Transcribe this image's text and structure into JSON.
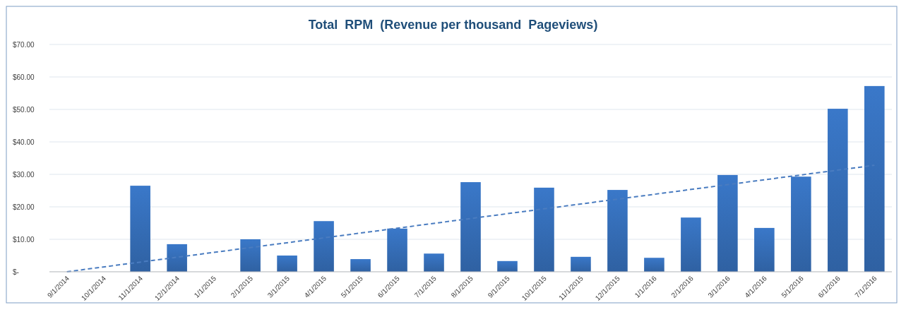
{
  "chart_data": {
    "type": "bar",
    "title": "Total  RPM  (Revenue per thousand  Pageviews)",
    "categories": [
      "9/1/2014",
      "10/1/2014",
      "11/1/2014",
      "12/1/2014",
      "1/1/2015",
      "2/1/2015",
      "3/1/2015",
      "4/1/2015",
      "5/1/2015",
      "6/1/2015",
      "7/1/2015",
      "8/1/2015",
      "9/1/2015",
      "10/1/2015",
      "11/1/2015",
      "12/1/2015",
      "1/1/2016",
      "2/1/2016",
      "3/1/2016",
      "4/1/2016",
      "5/1/2016",
      "6/1/2016",
      "7/1/2016"
    ],
    "series": [
      {
        "color": "#3a78c9",
        "values": [
          0,
          0,
          26.5,
          8.5,
          0,
          10.0,
          5.0,
          15.6,
          3.9,
          13.3,
          5.6,
          27.6,
          3.3,
          25.9,
          4.6,
          25.2,
          4.3,
          16.7,
          29.8,
          13.5,
          29.3,
          50.2,
          57.2
        ]
      },
      {
        "type": "line",
        "color": "#4a7cc0",
        "line_style": "dashed",
        "x": [
          "9/1/2014",
          "7/1/2016"
        ],
        "values": [
          0,
          32.8
        ]
      }
    ],
    "ylim": [
      0,
      70
    ],
    "yticks": [
      {
        "value": 0,
        "label": "$-"
      },
      {
        "value": 10,
        "label": "$10.00"
      },
      {
        "value": 20,
        "label": "$20.00"
      },
      {
        "value": 30,
        "label": "$30.00"
      },
      {
        "value": 40,
        "label": "$40.00"
      },
      {
        "value": 50,
        "label": "$50.00"
      },
      {
        "value": 60,
        "label": "$60.00"
      },
      {
        "value": 70,
        "label": "$70.00"
      }
    ],
    "grid": "y"
  }
}
